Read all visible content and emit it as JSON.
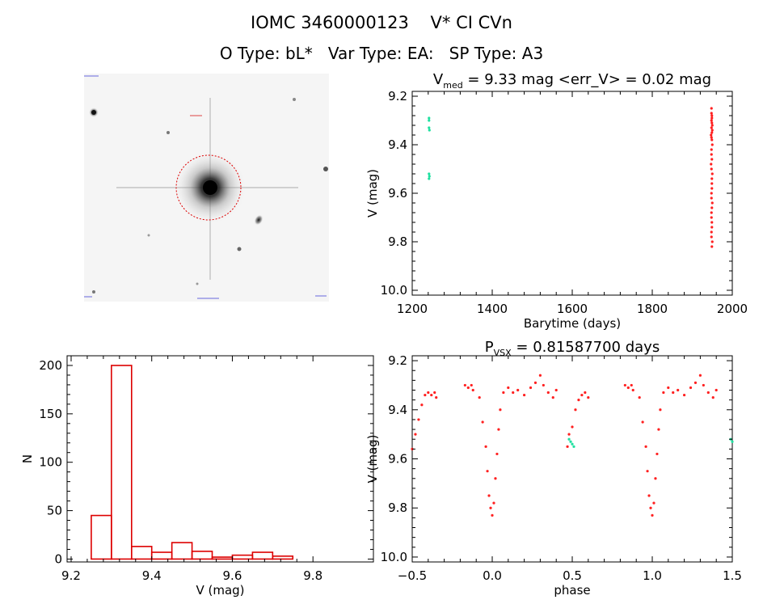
{
  "header": {
    "title_line1": "IOMC 3460000123    V* CI CVn",
    "title_line2": "O Type: bL*   Var Type: EA:   SP Type: A3"
  },
  "stamp": {
    "marker_color": "#dd0000"
  },
  "chart_data": [
    {
      "type": "scatter",
      "title": "V_med = 9.33 mag <err_V> = 0.02 mag",
      "title_main": "V",
      "title_sub": "med",
      "title_rest": " = 9.33 mag <err_V> = 0.02 mag",
      "xlabel": "Barytime (days)",
      "ylabel": "V (mag)",
      "xlim": [
        1200,
        2000
      ],
      "ylim": [
        10.02,
        9.18
      ],
      "xticks": [
        1200,
        1400,
        1600,
        1800,
        2000
      ],
      "yticks": [
        9.2,
        9.4,
        9.6,
        9.8,
        10.0
      ],
      "xtick_labels": [
        "1200",
        "1400",
        "1600",
        "1800",
        "2000"
      ],
      "ytick_labels": [
        "9.2",
        "9.4",
        "9.6",
        "9.8",
        "10.0"
      ],
      "series": [
        {
          "color": "#ff2020",
          "points": [
            [
              1948,
              9.25
            ],
            [
              1948,
              9.27
            ],
            [
              1949,
              9.29
            ],
            [
              1949,
              9.31
            ],
            [
              1948,
              9.33
            ],
            [
              1949,
              9.35
            ],
            [
              1948,
              9.3
            ],
            [
              1950,
              9.32
            ],
            [
              1949,
              9.38
            ],
            [
              1948,
              9.42
            ],
            [
              1949,
              9.46
            ],
            [
              1948,
              9.5
            ],
            [
              1949,
              9.54
            ],
            [
              1949,
              9.58
            ],
            [
              1948,
              9.62
            ],
            [
              1949,
              9.66
            ],
            [
              1948,
              9.7
            ],
            [
              1949,
              9.74
            ],
            [
              1948,
              9.78
            ],
            [
              1949,
              9.82
            ],
            [
              1947,
              9.36
            ],
            [
              1950,
              9.4
            ],
            [
              1948,
              9.44
            ],
            [
              1947,
              9.48
            ],
            [
              1950,
              9.52
            ],
            [
              1949,
              9.56
            ],
            [
              1948,
              9.6
            ],
            [
              1950,
              9.64
            ],
            [
              1948,
              9.68
            ],
            [
              1949,
              9.72
            ],
            [
              1948,
              9.76
            ],
            [
              1950,
              9.8
            ],
            [
              1949,
              9.28
            ],
            [
              1950,
              9.34
            ],
            [
              1948,
              9.37
            ]
          ]
        },
        {
          "color": "#20e0a0",
          "points": [
            [
              1242,
              9.29
            ],
            [
              1242,
              9.3
            ],
            [
              1242,
              9.33
            ],
            [
              1243,
              9.34
            ],
            [
              1242,
              9.52
            ],
            [
              1243,
              9.53
            ],
            [
              1242,
              9.54
            ]
          ]
        }
      ]
    },
    {
      "type": "bar",
      "title": "",
      "xlabel": "V (mag)",
      "ylabel": "N",
      "xlim": [
        9.19,
        9.95
      ],
      "ylim": [
        -3,
        210
      ],
      "xticks": [
        9.2,
        9.4,
        9.6,
        9.8
      ],
      "yticks": [
        0,
        50,
        100,
        150,
        200
      ],
      "xtick_labels": [
        "9.2",
        "9.4",
        "9.6",
        "9.8"
      ],
      "ytick_labels": [
        "0",
        "50",
        "100",
        "150",
        "200"
      ],
      "bin_edges": [
        9.25,
        9.3,
        9.35,
        9.4,
        9.45,
        9.5,
        9.55,
        9.6,
        9.65,
        9.7,
        9.75,
        9.8,
        9.85
      ],
      "values": [
        45,
        200,
        13,
        7,
        17,
        8,
        2,
        4,
        7,
        3,
        0,
        0
      ],
      "bar_color": "#dd0000"
    },
    {
      "type": "scatter",
      "title": "P_VSX = 0.81587700 days",
      "title_main": "P",
      "title_sub": "VSX",
      "title_rest": " = 0.81587700 days",
      "xlabel": "phase",
      "ylabel": "V (mag)",
      "xlim": [
        -0.5,
        1.5
      ],
      "ylim": [
        10.02,
        9.18
      ],
      "xticks": [
        -0.5,
        0.0,
        0.5,
        1.0,
        1.5
      ],
      "yticks": [
        9.2,
        9.4,
        9.6,
        9.8,
        10.0
      ],
      "xtick_labels": [
        "−0.5",
        "0.0",
        "0.5",
        "1.0",
        "1.5"
      ],
      "ytick_labels": [
        "9.2",
        "9.4",
        "9.6",
        "9.8",
        "10.0"
      ],
      "series": [
        {
          "color": "#ff2020",
          "points": [
            [
              -0.5,
              9.56
            ],
            [
              -0.48,
              9.5
            ],
            [
              -0.46,
              9.44
            ],
            [
              -0.44,
              9.38
            ],
            [
              -0.42,
              9.34
            ],
            [
              -0.4,
              9.33
            ],
            [
              -0.38,
              9.34
            ],
            [
              -0.36,
              9.33
            ],
            [
              -0.35,
              9.35
            ],
            [
              -0.17,
              9.3
            ],
            [
              -0.15,
              9.31
            ],
            [
              -0.13,
              9.3
            ],
            [
              -0.12,
              9.32
            ],
            [
              -0.08,
              9.35
            ],
            [
              -0.06,
              9.45
            ],
            [
              -0.04,
              9.55
            ],
            [
              -0.03,
              9.65
            ],
            [
              -0.02,
              9.75
            ],
            [
              -0.01,
              9.8
            ],
            [
              0.0,
              9.83
            ],
            [
              0.01,
              9.78
            ],
            [
              0.02,
              9.68
            ],
            [
              0.03,
              9.58
            ],
            [
              0.04,
              9.48
            ],
            [
              0.05,
              9.4
            ],
            [
              0.07,
              9.33
            ],
            [
              0.1,
              9.31
            ],
            [
              0.13,
              9.33
            ],
            [
              0.16,
              9.32
            ],
            [
              0.2,
              9.34
            ],
            [
              0.24,
              9.31
            ],
            [
              0.27,
              9.29
            ],
            [
              0.3,
              9.26
            ],
            [
              0.32,
              9.3
            ],
            [
              0.35,
              9.33
            ],
            [
              0.38,
              9.35
            ],
            [
              0.4,
              9.32
            ],
            [
              0.47,
              9.55
            ],
            [
              0.48,
              9.5
            ],
            [
              0.5,
              9.47
            ],
            [
              0.52,
              9.4
            ],
            [
              0.54,
              9.36
            ],
            [
              0.56,
              9.34
            ],
            [
              0.58,
              9.33
            ],
            [
              0.6,
              9.35
            ],
            [
              0.83,
              9.3
            ],
            [
              0.85,
              9.31
            ],
            [
              0.87,
              9.3
            ],
            [
              0.88,
              9.32
            ],
            [
              0.92,
              9.35
            ],
            [
              0.94,
              9.45
            ],
            [
              0.96,
              9.55
            ],
            [
              0.97,
              9.65
            ],
            [
              0.98,
              9.75
            ],
            [
              0.99,
              9.8
            ],
            [
              1.0,
              9.83
            ],
            [
              1.01,
              9.78
            ],
            [
              1.02,
              9.68
            ],
            [
              1.03,
              9.58
            ],
            [
              1.04,
              9.48
            ],
            [
              1.05,
              9.4
            ],
            [
              1.07,
              9.33
            ],
            [
              1.1,
              9.31
            ],
            [
              1.13,
              9.33
            ],
            [
              1.16,
              9.32
            ],
            [
              1.2,
              9.34
            ],
            [
              1.24,
              9.31
            ],
            [
              1.27,
              9.29
            ],
            [
              1.3,
              9.26
            ],
            [
              1.32,
              9.3
            ],
            [
              1.35,
              9.33
            ],
            [
              1.38,
              9.35
            ],
            [
              1.4,
              9.32
            ]
          ]
        },
        {
          "color": "#20e0a0",
          "points": [
            [
              0.48,
              9.52
            ],
            [
              0.49,
              9.53
            ],
            [
              0.5,
              9.54
            ],
            [
              0.51,
              9.55
            ],
            [
              1.49,
              9.52
            ],
            [
              1.5,
              9.53
            ]
          ]
        }
      ]
    }
  ]
}
